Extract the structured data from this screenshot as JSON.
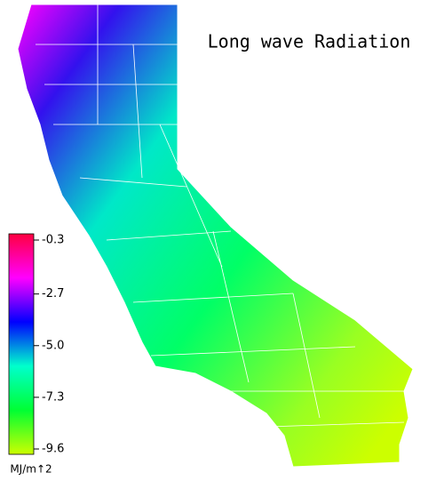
{
  "chart_data": {
    "type": "map",
    "title": "Long wave Radiation",
    "colorbar": {
      "clim": [
        -9.6,
        -0.3
      ],
      "ticks": [
        -0.3,
        -2.7,
        {
          "value": -5,
          "label": "-5.0"
        },
        -7.3,
        -9.6
      ],
      "colors": [
        "#ccff00",
        "#00ff33",
        "#00ffcc",
        "#0000ff",
        "#ff00ff",
        "#ff0040"
      ],
      "unit": "MJ/m↑2"
    }
  }
}
